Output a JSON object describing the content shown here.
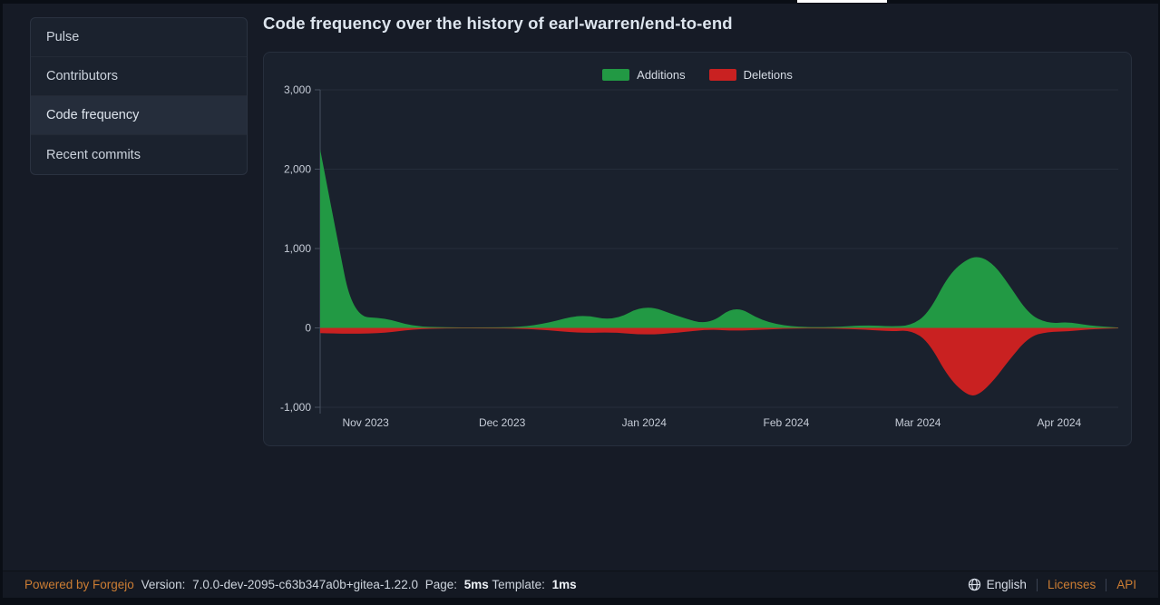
{
  "window": {
    "tab_indicator": "active-tab-underline"
  },
  "sidebar": {
    "items": [
      {
        "label": "Pulse",
        "active": false
      },
      {
        "label": "Contributors",
        "active": false
      },
      {
        "label": "Code frequency",
        "active": true
      },
      {
        "label": "Recent commits",
        "active": false
      }
    ]
  },
  "header": {
    "title": "Code frequency over the history of earl-warren/end-to-end"
  },
  "chart_data": {
    "type": "area",
    "title": "Code frequency over the history of earl-warren/end-to-end",
    "legend": [
      {
        "name": "Additions",
        "color": "#229944"
      },
      {
        "name": "Deletions",
        "color": "#c92121"
      }
    ],
    "legend_position": "top-center",
    "grid": true,
    "xlabel": "",
    "ylabel": "",
    "ylim": [
      -1000,
      3000
    ],
    "yticks": [
      {
        "value": 3000,
        "label": "3,000"
      },
      {
        "value": 2000,
        "label": "2,000"
      },
      {
        "value": 1000,
        "label": "1,000"
      },
      {
        "value": 0,
        "label": "0"
      },
      {
        "value": -1000,
        "label": "-1,000"
      }
    ],
    "xticks": [
      {
        "t": 0.057,
        "label": "Nov 2023"
      },
      {
        "t": 0.228,
        "label": "Dec 2023"
      },
      {
        "t": 0.406,
        "label": "Jan 2024"
      },
      {
        "t": 0.584,
        "label": "Feb 2024"
      },
      {
        "t": 0.749,
        "label": "Mar 2024"
      },
      {
        "t": 0.926,
        "label": "Apr 2024"
      }
    ],
    "colors": {
      "grid": "#252d3a",
      "axis": "#46505f"
    },
    "series": [
      {
        "name": "Additions",
        "color": "#229944",
        "points": [
          [
            0,
            2250
          ],
          [
            0.02,
            1200
          ],
          [
            0.041,
            140
          ],
          [
            0.082,
            125
          ],
          [
            0.115,
            20
          ],
          [
            0.16,
            6
          ],
          [
            0.21,
            6
          ],
          [
            0.25,
            10
          ],
          [
            0.285,
            60
          ],
          [
            0.327,
            175
          ],
          [
            0.368,
            85
          ],
          [
            0.407,
            300
          ],
          [
            0.45,
            140
          ],
          [
            0.487,
            35
          ],
          [
            0.52,
            290
          ],
          [
            0.553,
            90
          ],
          [
            0.59,
            12
          ],
          [
            0.64,
            8
          ],
          [
            0.685,
            35
          ],
          [
            0.715,
            18
          ],
          [
            0.74,
            30
          ],
          [
            0.762,
            180
          ],
          [
            0.788,
            680
          ],
          [
            0.812,
            880
          ],
          [
            0.828,
            900
          ],
          [
            0.845,
            790
          ],
          [
            0.862,
            560
          ],
          [
            0.888,
            170
          ],
          [
            0.912,
            55
          ],
          [
            0.938,
            75
          ],
          [
            0.962,
            30
          ],
          [
            1,
            5
          ]
        ]
      },
      {
        "name": "Deletions",
        "color": "#c92121",
        "points": [
          [
            0,
            -65
          ],
          [
            0.02,
            -70
          ],
          [
            0.041,
            -75
          ],
          [
            0.082,
            -65
          ],
          [
            0.115,
            -18
          ],
          [
            0.16,
            -5
          ],
          [
            0.21,
            -5
          ],
          [
            0.25,
            -8
          ],
          [
            0.285,
            -28
          ],
          [
            0.327,
            -65
          ],
          [
            0.368,
            -55
          ],
          [
            0.407,
            -90
          ],
          [
            0.45,
            -60
          ],
          [
            0.487,
            -18
          ],
          [
            0.52,
            -38
          ],
          [
            0.553,
            -22
          ],
          [
            0.59,
            -8
          ],
          [
            0.64,
            -6
          ],
          [
            0.685,
            -22
          ],
          [
            0.715,
            -45
          ],
          [
            0.74,
            -28
          ],
          [
            0.762,
            -170
          ],
          [
            0.788,
            -640
          ],
          [
            0.812,
            -860
          ],
          [
            0.826,
            -840
          ],
          [
            0.845,
            -650
          ],
          [
            0.862,
            -420
          ],
          [
            0.888,
            -110
          ],
          [
            0.912,
            -48
          ],
          [
            0.938,
            -45
          ],
          [
            0.962,
            -18
          ],
          [
            1,
            -5
          ]
        ]
      }
    ]
  },
  "footer": {
    "powered_by": "Powered by Forgejo",
    "version_label": "Version:",
    "version": "7.0.0-dev-2095-c63b347a0b+gitea-1.22.0",
    "page_label": "Page:",
    "page_time": "5ms",
    "template_label": "Template:",
    "template_time": "1ms",
    "language": "English",
    "licenses": "Licenses",
    "api": "API"
  }
}
